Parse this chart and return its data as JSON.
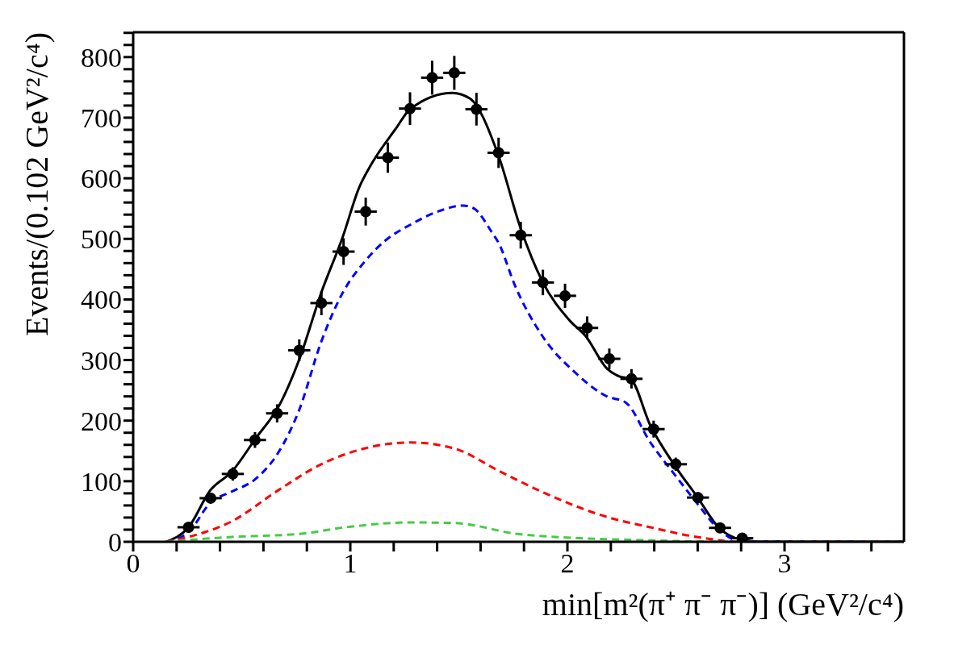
{
  "chart_data": {
    "type": "line",
    "xlabel": "min[m²(π⁺ π⁻ π⁻)] (GeV²/c⁴)",
    "ylabel": "Events/(0.102 GeV²/c⁴)",
    "xlim": [
      0,
      3.55
    ],
    "ylim": [
      0,
      841
    ],
    "xticks": [
      0,
      {
        "value": 0.2,
        "label": null
      },
      {
        "value": 0.4,
        "label": null
      },
      {
        "value": 0.6,
        "label": null
      },
      {
        "value": 0.8,
        "label": null
      },
      1,
      {
        "value": 1.2,
        "label": null
      },
      {
        "value": 1.4,
        "label": null
      },
      {
        "value": 1.6,
        "label": null
      },
      {
        "value": 1.8,
        "label": null
      },
      2,
      {
        "value": 2.2,
        "label": null
      },
      {
        "value": 2.4,
        "label": null
      },
      {
        "value": 2.6,
        "label": null
      },
      {
        "value": 2.8,
        "label": null
      },
      3,
      {
        "value": 3.2,
        "label": null
      },
      {
        "value": 3.4,
        "label": null
      }
    ],
    "yticks": [
      0,
      {
        "value": 20,
        "label": null
      },
      {
        "value": 40,
        "label": null
      },
      {
        "value": 60,
        "label": null
      },
      {
        "value": 80,
        "label": null
      },
      100,
      {
        "value": 120,
        "label": null
      },
      {
        "value": 140,
        "label": null
      },
      {
        "value": 160,
        "label": null
      },
      {
        "value": 180,
        "label": null
      },
      200,
      {
        "value": 220,
        "label": null
      },
      {
        "value": 240,
        "label": null
      },
      {
        "value": 260,
        "label": null
      },
      {
        "value": 280,
        "label": null
      },
      300,
      {
        "value": 320,
        "label": null
      },
      {
        "value": 340,
        "label": null
      },
      {
        "value": 360,
        "label": null
      },
      {
        "value": 380,
        "label": null
      },
      400,
      {
        "value": 420,
        "label": null
      },
      {
        "value": 440,
        "label": null
      },
      {
        "value": 460,
        "label": null
      },
      {
        "value": 480,
        "label": null
      },
      500,
      {
        "value": 520,
        "label": null
      },
      {
        "value": 540,
        "label": null
      },
      {
        "value": 560,
        "label": null
      },
      {
        "value": 580,
        "label": null
      },
      600,
      {
        "value": 620,
        "label": null
      },
      {
        "value": 640,
        "label": null
      },
      {
        "value": 660,
        "label": null
      },
      {
        "value": 680,
        "label": null
      },
      700,
      {
        "value": 720,
        "label": null
      },
      {
        "value": 740,
        "label": null
      },
      {
        "value": 760,
        "label": null
      },
      {
        "value": 780,
        "label": null
      },
      800,
      {
        "value": 820,
        "label": null
      },
      {
        "value": 840,
        "label": null
      }
    ],
    "series": [
      {
        "color": "#000000",
        "line_style": "solid",
        "marker": "none",
        "x": [
          0.152,
          0.255,
          0.355,
          0.455,
          0.561,
          0.68,
          0.764,
          0.866,
          0.965,
          1.04,
          1.1,
          1.21,
          1.275,
          1.47,
          1.55,
          1.68,
          1.784,
          1.883,
          2.011,
          2.083,
          2.182,
          2.239,
          2.289,
          2.382,
          2.496,
          2.596,
          2.696,
          2.796,
          2.9,
          3.55
        ],
        "values": [
          0,
          24,
          85,
          116,
          169,
          230,
          300,
          411,
          503,
          584,
          625,
          682,
          714,
          741,
          732,
          640,
          518,
          431,
          365,
          340,
          286,
          273,
          269,
          192,
          125,
          75,
          24,
          4,
          0,
          0
        ]
      },
      {
        "color": "#0000ff",
        "line_style": "dashed",
        "marker": "none",
        "x": [
          0.152,
          0.255,
          0.357,
          0.455,
          0.561,
          0.668,
          0.764,
          0.866,
          0.965,
          1.065,
          1.164,
          1.275,
          1.41,
          1.52,
          1.57,
          1.65,
          1.685,
          1.756,
          1.884,
          2.04,
          2.182,
          2.268,
          2.382,
          2.496,
          2.596,
          2.696,
          2.796,
          3.55
        ],
        "values": [
          0,
          16,
          65,
          83,
          103,
          147,
          217,
          330,
          411,
          462,
          498,
          523,
          546,
          555,
          550,
          512,
          492,
          425,
          340,
          278,
          240,
          230,
          164,
          110,
          64,
          21,
          1,
          0
        ]
      },
      {
        "color": "#ff0000",
        "line_style": "dashed",
        "marker": "none",
        "x": [
          0.152,
          0.255,
          0.455,
          0.668,
          0.866,
          1.065,
          1.275,
          1.48,
          1.69,
          1.898,
          2.182,
          2.382,
          2.596,
          2.8,
          3.55
        ],
        "values": [
          0,
          8,
          34,
          85,
          128,
          154,
          164,
          154,
          116,
          80,
          41,
          24,
          8,
          0,
          0
        ]
      },
      {
        "color": "#44cc44",
        "line_style": "dashed",
        "marker": "none",
        "x": [
          0.152,
          0.455,
          0.767,
          0.98,
          1.275,
          1.48,
          1.77,
          2.0,
          2.32,
          2.8,
          3.55
        ],
        "values": [
          0,
          8,
          13,
          24,
          32,
          31,
          13,
          7,
          3,
          0,
          0
        ]
      },
      {
        "type": "scatter",
        "color": "#000000",
        "marker": "circle",
        "x": [
          0.255,
          0.357,
          0.459,
          0.561,
          0.663,
          0.765,
          0.867,
          0.969,
          1.071,
          1.173,
          1.275,
          1.377,
          1.479,
          1.581,
          1.683,
          1.785,
          1.887,
          1.989,
          2.091,
          2.193,
          2.295,
          2.397,
          2.499,
          2.601,
          2.703,
          2.805
        ],
        "values": [
          24,
          72,
          112,
          168,
          212,
          316,
          394,
          479,
          545,
          634,
          715,
          766,
          774,
          714,
          642,
          506,
          428,
          406,
          353,
          302,
          269,
          186,
          128,
          73,
          23,
          6
        ],
        "errors": [
          5,
          8,
          11,
          13,
          15,
          18,
          20,
          22,
          23,
          25,
          27,
          28,
          28,
          27,
          25,
          22,
          21,
          20,
          19,
          17,
          16,
          14,
          11,
          9,
          5,
          2
        ],
        "xerrors": [
          0.051,
          0.051,
          0.051,
          0.051,
          0.051,
          0.051,
          0.051,
          0.051,
          0.051,
          0.051,
          0.051,
          0.051,
          0.051,
          0.051,
          0.051,
          0.051,
          0.051,
          0.051,
          0.051,
          0.051,
          0.051,
          0.051,
          0.051,
          0.051,
          0.051,
          0.051
        ]
      }
    ]
  }
}
